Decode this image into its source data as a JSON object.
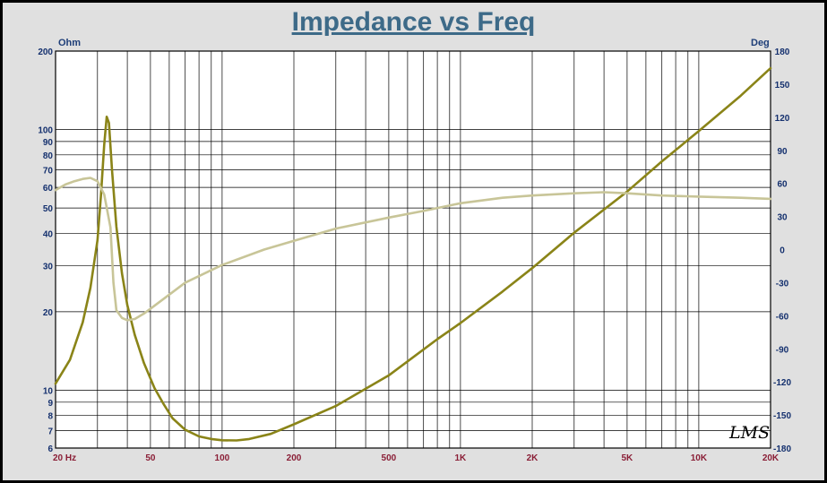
{
  "chart_data": {
    "type": "line",
    "title": "Impedance vs Freq",
    "ylabel_left": "Ohm",
    "ylabel_right": "Deg",
    "x_scale": "log",
    "y_scale_left": "log",
    "xlim": [
      20,
      20000
    ],
    "ylim_left": [
      6,
      200
    ],
    "ylim_right": [
      -180,
      180
    ],
    "x_ticks": [
      {
        "value": 20,
        "label": "20  Hz"
      },
      {
        "value": 50,
        "label": "50"
      },
      {
        "value": 100,
        "label": "100"
      },
      {
        "value": 200,
        "label": "200"
      },
      {
        "value": 500,
        "label": "500"
      },
      {
        "value": 1000,
        "label": "1K"
      },
      {
        "value": 2000,
        "label": "2K"
      },
      {
        "value": 5000,
        "label": "5K"
      },
      {
        "value": 10000,
        "label": "10K"
      },
      {
        "value": 20000,
        "label": "20K"
      }
    ],
    "y_ticks_left": [
      {
        "value": 6,
        "label": "6"
      },
      {
        "value": 7,
        "label": "7"
      },
      {
        "value": 8,
        "label": "8"
      },
      {
        "value": 9,
        "label": "9"
      },
      {
        "value": 10,
        "label": "10"
      },
      {
        "value": 20,
        "label": "20"
      },
      {
        "value": 30,
        "label": "30"
      },
      {
        "value": 40,
        "label": "40"
      },
      {
        "value": 50,
        "label": "50"
      },
      {
        "value": 60,
        "label": "60"
      },
      {
        "value": 70,
        "label": "70"
      },
      {
        "value": 80,
        "label": "80"
      },
      {
        "value": 90,
        "label": "90"
      },
      {
        "value": 100,
        "label": "100"
      },
      {
        "value": 200,
        "label": "200"
      }
    ],
    "y_ticks_right": [
      {
        "value": -180,
        "label": "-180"
      },
      {
        "value": -150,
        "label": "-150"
      },
      {
        "value": -120,
        "label": "-120"
      },
      {
        "value": -90,
        "label": "-90"
      },
      {
        "value": -60,
        "label": "-60"
      },
      {
        "value": -30,
        "label": "-30"
      },
      {
        "value": 0,
        "label": "0"
      },
      {
        "value": 30,
        "label": "30"
      },
      {
        "value": 60,
        "label": "60"
      },
      {
        "value": 90,
        "label": "90"
      },
      {
        "value": 120,
        "label": "120"
      },
      {
        "value": 150,
        "label": "150"
      },
      {
        "value": 180,
        "label": "180"
      }
    ],
    "grid": true,
    "series": [
      {
        "axis": "left",
        "color": "#8a8418",
        "points": [
          [
            20,
            10.6
          ],
          [
            23,
            13.1
          ],
          [
            26,
            18.2
          ],
          [
            28,
            24.7
          ],
          [
            30,
            37.6
          ],
          [
            31,
            55.4
          ],
          [
            32,
            87.4
          ],
          [
            32.8,
            112
          ],
          [
            33.5,
            106
          ],
          [
            34.5,
            70
          ],
          [
            36,
            42.4
          ],
          [
            38,
            28.1
          ],
          [
            40,
            21.2
          ],
          [
            43,
            16.3
          ],
          [
            47,
            12.7
          ],
          [
            52,
            10.2
          ],
          [
            57,
            8.8
          ],
          [
            62,
            7.8
          ],
          [
            70,
            7.05
          ],
          [
            80,
            6.65
          ],
          [
            90,
            6.5
          ],
          [
            100,
            6.43
          ],
          [
            115,
            6.42
          ],
          [
            130,
            6.5
          ],
          [
            160,
            6.8
          ],
          [
            200,
            7.4
          ],
          [
            300,
            8.7
          ],
          [
            500,
            11.4
          ],
          [
            800,
            15.7
          ],
          [
            1000,
            18.1
          ],
          [
            1500,
            23.9
          ],
          [
            2000,
            29.4
          ],
          [
            3000,
            40.2
          ],
          [
            5000,
            57.8
          ],
          [
            7000,
            75.5
          ],
          [
            10000,
            98.6
          ],
          [
            15000,
            135
          ],
          [
            20000,
            172
          ]
        ]
      },
      {
        "axis": "right",
        "color": "#c8c598",
        "points": [
          [
            20,
            54
          ],
          [
            22,
            59
          ],
          [
            24,
            62
          ],
          [
            26,
            64
          ],
          [
            28,
            65
          ],
          [
            30,
            62
          ],
          [
            32,
            50
          ],
          [
            34,
            20
          ],
          [
            35,
            -30
          ],
          [
            36,
            -55
          ],
          [
            38,
            -62
          ],
          [
            40,
            -64
          ],
          [
            43,
            -63
          ],
          [
            47,
            -58
          ],
          [
            55,
            -47
          ],
          [
            70,
            -30
          ],
          [
            100,
            -14
          ],
          [
            150,
            0
          ],
          [
            200,
            8
          ],
          [
            300,
            19
          ],
          [
            500,
            29
          ],
          [
            700,
            35
          ],
          [
            1000,
            42
          ],
          [
            1500,
            47
          ],
          [
            2000,
            49
          ],
          [
            3000,
            51
          ],
          [
            4000,
            52
          ],
          [
            5000,
            51
          ],
          [
            7000,
            49
          ],
          [
            10000,
            48
          ],
          [
            15000,
            47
          ],
          [
            20000,
            46
          ]
        ]
      }
    ],
    "signature": "LMS"
  }
}
